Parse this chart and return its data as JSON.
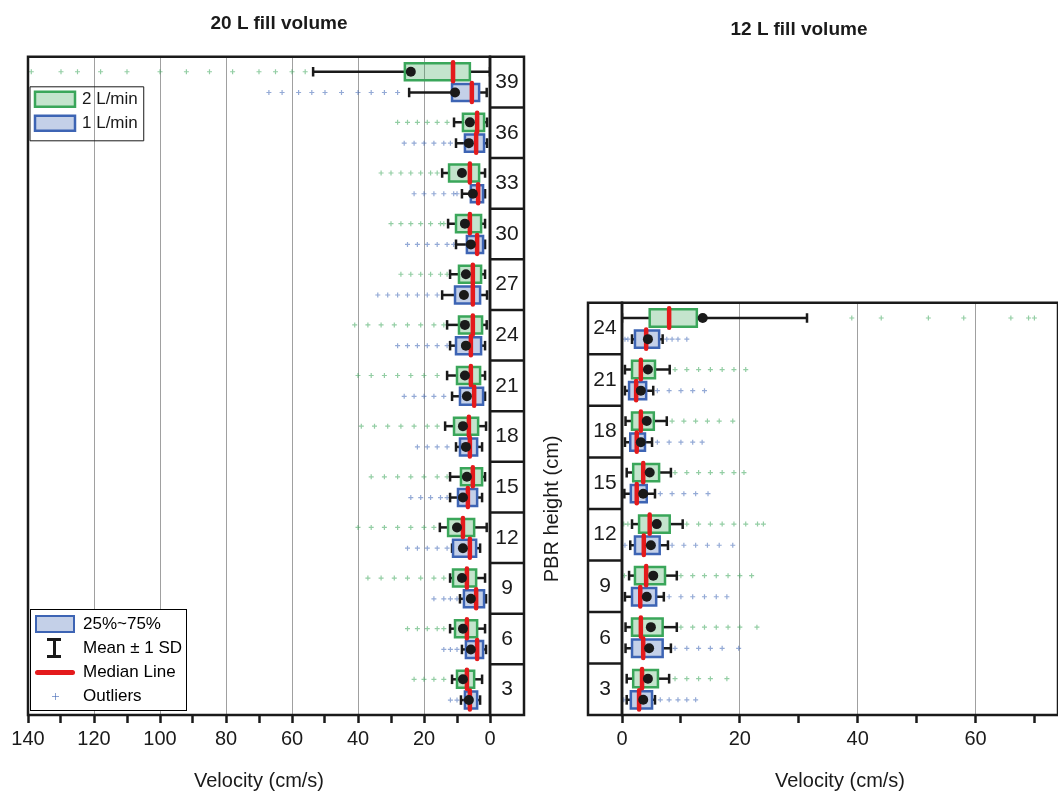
{
  "chart_data": [
    {
      "type": "box",
      "orientation": "horizontal",
      "title": "20 L fill volume",
      "xlabel": "Velocity (cm/s)",
      "categories": [
        "39",
        "36",
        "33",
        "30",
        "27",
        "24",
        "21",
        "18",
        "15",
        "12",
        "9",
        "6",
        "3"
      ],
      "xlim": [
        140,
        0
      ],
      "xticks": [
        140,
        {
          "value": 130,
          "label": null
        },
        120,
        {
          "value": 110,
          "label": null
        },
        100,
        {
          "value": 90,
          "label": null
        },
        80,
        {
          "value": 70,
          "label": null
        },
        60,
        {
          "value": 50,
          "label": null
        },
        40,
        {
          "value": 30,
          "label": null
        },
        20,
        {
          "value": 10,
          "label": null
        },
        0
      ],
      "grid": "x",
      "legend": "top left",
      "marker": "cross",
      "annotations": [
        "25%~75%",
        "Mean ± 1 SD",
        "Median Line",
        "Outliers"
      ],
      "series": [
        {
          "name": "2 L/min",
          "color": "#3aa65a",
          "boxes": [
            {
              "low": 0,
              "q1": 6.1,
              "median": 11.2,
              "q3": 25.8,
              "high": 53.6,
              "mean": 24,
              "outliers": [
                139,
                130,
                125,
                118,
                110,
                100,
                92,
                85,
                78,
                70,
                65,
                60,
                56
              ]
            },
            {
              "low": 0.9,
              "q1": 1.8,
              "median": 3.9,
              "q3": 8.2,
              "high": 10.9,
              "mean": 6.1,
              "outliers": [
                28,
                25,
                22,
                19,
                16,
                13
              ]
            },
            {
              "low": 1.5,
              "q1": 3.3,
              "median": 6.1,
              "q3": 12.4,
              "high": 14.5,
              "mean": 8.5,
              "outliers": [
                33,
                30,
                27,
                24,
                21,
                18,
                16
              ]
            },
            {
              "low": 1.5,
              "q1": 2.7,
              "median": 6.1,
              "q3": 10.3,
              "high": 12.7,
              "mean": 7.6,
              "outliers": [
                30,
                27,
                24,
                21,
                18,
                15,
                14
              ]
            },
            {
              "low": 1.5,
              "q1": 2.7,
              "median": 5.2,
              "q3": 9.4,
              "high": 12.1,
              "mean": 7.3,
              "outliers": [
                27,
                24,
                21,
                18,
                15,
                13
              ]
            },
            {
              "low": 1,
              "q1": 2.4,
              "median": 5.2,
              "q3": 9.4,
              "high": 13,
              "mean": 7.6,
              "outliers": [
                41,
                37,
                33,
                29,
                25,
                21,
                17,
                14
              ]
            },
            {
              "low": 1.5,
              "q1": 3,
              "median": 5.8,
              "q3": 10,
              "high": 13,
              "mean": 7.6,
              "outliers": [
                40,
                36,
                32,
                28,
                24,
                20,
                16
              ]
            },
            {
              "low": 1.2,
              "q1": 3.6,
              "median": 6.4,
              "q3": 10.9,
              "high": 13.6,
              "mean": 8.2,
              "outliers": [
                39,
                35,
                31,
                27,
                23,
                19,
                16
              ]
            },
            {
              "low": 1.5,
              "q1": 2.4,
              "median": 5.2,
              "q3": 8.8,
              "high": 12.1,
              "mean": 7,
              "outliers": [
                36,
                32,
                28,
                24,
                20,
                16,
                13
              ]
            },
            {
              "low": 1,
              "q1": 4.8,
              "median": 8.2,
              "q3": 12.7,
              "high": 15.2,
              "mean": 10,
              "outliers": [
                40,
                36,
                32,
                28,
                24,
                20,
                17
              ]
            },
            {
              "low": 1.5,
              "q1": 4.2,
              "median": 7,
              "q3": 11.2,
              "high": 12.1,
              "mean": 8.5,
              "outliers": [
                37,
                33,
                29,
                25,
                21,
                17,
                14
              ]
            },
            {
              "low": 1.5,
              "q1": 3.9,
              "median": 7,
              "q3": 10.6,
              "high": 12.1,
              "mean": 8.2,
              "outliers": [
                25,
                22,
                19,
                16,
                14
              ]
            },
            {
              "low": 2.4,
              "q1": 4.8,
              "median": 7,
              "q3": 10,
              "high": 11.5,
              "mean": 8.2,
              "outliers": [
                23,
                20,
                17,
                14
              ]
            }
          ]
        },
        {
          "name": "1 L/min",
          "color": "#3d64b4",
          "boxes": [
            {
              "low": 1,
              "q1": 3.3,
              "median": 5.5,
              "q3": 11.5,
              "high": 24.5,
              "mean": 10.6,
              "outliers": [
                67,
                63,
                58,
                54,
                50,
                45,
                40,
                36,
                32,
                28
              ]
            },
            {
              "low": 0.9,
              "q1": 1.8,
              "median": 4.2,
              "q3": 7.6,
              "high": 10.3,
              "mean": 6.4,
              "outliers": [
                26,
                23,
                20,
                17,
                14,
                12
              ]
            },
            {
              "low": 1.5,
              "q1": 2.1,
              "median": 3.6,
              "q3": 5.8,
              "high": 8.5,
              "mean": 5.2,
              "outliers": [
                23,
                20,
                17,
                14,
                11,
                10
              ]
            },
            {
              "low": 1.5,
              "q1": 2.1,
              "median": 3.9,
              "q3": 7,
              "high": 10.3,
              "mean": 5.8,
              "outliers": [
                25,
                22,
                19,
                16,
                13,
                11
              ]
            },
            {
              "low": 0.9,
              "q1": 3,
              "median": 5.2,
              "q3": 10.6,
              "high": 14.5,
              "mean": 7.9,
              "outliers": [
                34,
                31,
                28,
                25,
                22,
                19,
                16
              ]
            },
            {
              "low": 1.5,
              "q1": 2.7,
              "median": 5.8,
              "q3": 10.3,
              "high": 12.1,
              "mean": 7.3,
              "outliers": [
                28,
                25,
                22,
                19,
                16,
                13
              ]
            },
            {
              "low": 1.5,
              "q1": 2.1,
              "median": 4.8,
              "q3": 9.1,
              "high": 11.5,
              "mean": 7,
              "outliers": [
                26,
                23,
                20,
                17,
                14
              ]
            },
            {
              "low": 2.4,
              "q1": 3.9,
              "median": 6.1,
              "q3": 9.1,
              "high": 10.3,
              "mean": 7.3,
              "outliers": [
                22,
                19,
                16,
                13
              ]
            },
            {
              "low": 2.4,
              "q1": 3.9,
              "median": 6.7,
              "q3": 9.7,
              "high": 12.1,
              "mean": 8.2,
              "outliers": [
                24,
                21,
                18,
                15,
                13
              ]
            },
            {
              "low": 3,
              "q1": 4.2,
              "median": 6.1,
              "q3": 11.2,
              "high": 11.5,
              "mean": 8.2,
              "outliers": [
                25,
                22,
                19,
                16,
                13
              ]
            },
            {
              "low": 1.2,
              "q1": 1.8,
              "median": 4.2,
              "q3": 7.9,
              "high": 9.1,
              "mean": 5.8,
              "outliers": [
                17,
                14,
                12,
                10
              ]
            },
            {
              "low": 1.2,
              "q1": 2.1,
              "median": 3.9,
              "q3": 7.3,
              "high": 8.5,
              "mean": 5.8,
              "outliers": [
                14,
                12,
                10
              ]
            },
            {
              "low": 3,
              "q1": 3.9,
              "median": 6.1,
              "q3": 7.6,
              "high": 8.8,
              "mean": 6.4,
              "outliers": [
                12,
                10
              ]
            }
          ]
        }
      ]
    },
    {
      "type": "box",
      "orientation": "horizontal",
      "title": "12 L fill volume",
      "xlabel": "Velocity (cm/s)",
      "ylabel": "PBR height (cm)",
      "categories": [
        "24",
        "21",
        "18",
        "15",
        "12",
        "9",
        "6",
        "3"
      ],
      "xlim": [
        0,
        74
      ],
      "xticks": [
        0,
        {
          "value": 10,
          "label": null
        },
        20,
        {
          "value": 30,
          "label": null
        },
        40,
        {
          "value": 50,
          "label": null
        },
        60,
        {
          "value": 70,
          "label": null
        }
      ],
      "grid": "x",
      "marker": "cross",
      "series": [
        {
          "color": "#3aa65a",
          "boxes": [
            {
              "low": 0,
              "q1": 4.7,
              "median": 8,
              "q3": 12.7,
              "high": 31.4,
              "mean": 13.7,
              "outliers": [
                39,
                44,
                52,
                58,
                66,
                69,
                70
              ]
            },
            {
              "low": 0.5,
              "q1": 1.7,
              "median": 3.2,
              "q3": 5.6,
              "high": 8.1,
              "mean": 4.4,
              "outliers": [
                9,
                11,
                13,
                15,
                17,
                19,
                21
              ]
            },
            {
              "low": 0.6,
              "q1": 1.7,
              "median": 3.2,
              "q3": 5.4,
              "high": 7.6,
              "mean": 4.2,
              "outliers": [
                8.5,
                10.5,
                12.5,
                14.5,
                16.5,
                18.8
              ]
            },
            {
              "low": 0.8,
              "q1": 1.9,
              "median": 3.6,
              "q3": 6.3,
              "high": 8.3,
              "mean": 4.7,
              "outliers": [
                9,
                11,
                13,
                15,
                17,
                19,
                20.7
              ]
            },
            {
              "low": 1.7,
              "q1": 2.9,
              "median": 4.7,
              "q3": 8.1,
              "high": 10.3,
              "mean": 5.9,
              "outliers": [
                0.3,
                1,
                11,
                13,
                15,
                17,
                19,
                21,
                23,
                24
              ]
            },
            {
              "low": 1.2,
              "q1": 2.2,
              "median": 4.1,
              "q3": 7.3,
              "high": 9.3,
              "mean": 5.3,
              "outliers": [
                0.4,
                10,
                12,
                14,
                16,
                18,
                20,
                22
              ]
            },
            {
              "low": 0.6,
              "q1": 1.7,
              "median": 3.2,
              "q3": 6.9,
              "high": 9.3,
              "mean": 4.9,
              "outliers": [
                10,
                12,
                14,
                16,
                18,
                20,
                22.9
              ]
            },
            {
              "low": 0.8,
              "q1": 1.9,
              "median": 3.4,
              "q3": 6.1,
              "high": 8,
              "mean": 4.4,
              "outliers": [
                9,
                11,
                13,
                15,
                17.8
              ]
            }
          ]
        },
        {
          "color": "#3d64b4",
          "boxes": [
            {
              "low": 1.7,
              "q1": 2.2,
              "median": 4.1,
              "q3": 6.3,
              "high": 6.9,
              "mean": 4.4,
              "outliers": [
                0.5,
                1,
                7.6,
                8.5,
                9.5,
                11
              ]
            },
            {
              "low": 0.5,
              "q1": 1.2,
              "median": 2.4,
              "q3": 4.1,
              "high": 5.3,
              "mean": 3.2,
              "outliers": [
                6,
                8,
                10,
                12,
                14
              ]
            },
            {
              "low": 0.5,
              "q1": 1.4,
              "median": 2.5,
              "q3": 3.9,
              "high": 5.1,
              "mean": 3.2,
              "outliers": [
                6,
                8,
                10,
                12,
                13.6
              ]
            },
            {
              "low": 0.4,
              "q1": 1.5,
              "median": 2.5,
              "q3": 4.2,
              "high": 5.6,
              "mean": 3.6,
              "outliers": [
                6.5,
                8.5,
                10.5,
                12.5,
                14.6
              ]
            },
            {
              "low": 1.4,
              "q1": 2.2,
              "median": 3.7,
              "q3": 6.4,
              "high": 7.8,
              "mean": 4.9,
              "outliers": [
                0.5,
                8.5,
                10.5,
                12.5,
                14.5,
                16.5,
                18.8
              ]
            },
            {
              "low": 0.5,
              "q1": 1.7,
              "median": 3.1,
              "q3": 5.8,
              "high": 7.1,
              "mean": 4.2,
              "outliers": [
                8,
                10,
                12,
                14,
                16,
                17.8
              ]
            },
            {
              "low": 0.6,
              "q1": 1.7,
              "median": 3.6,
              "q3": 6.9,
              "high": 8.3,
              "mean": 4.6,
              "outliers": [
                9,
                11,
                13,
                15,
                17,
                19.8
              ]
            },
            {
              "low": 0.8,
              "q1": 1.5,
              "median": 2.9,
              "q3": 5.1,
              "high": 5.6,
              "mean": 3.6,
              "outliers": [
                0.3,
                6.5,
                8,
                9.5,
                11,
                12.5
              ]
            }
          ]
        }
      ]
    }
  ]
}
